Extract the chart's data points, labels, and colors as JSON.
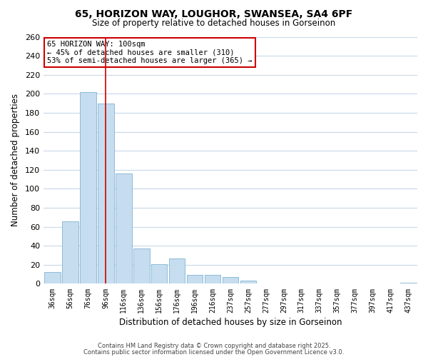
{
  "title": "65, HORIZON WAY, LOUGHOR, SWANSEA, SA4 6PF",
  "subtitle": "Size of property relative to detached houses in Gorseinon",
  "xlabel": "Distribution of detached houses by size in Gorseinon",
  "ylabel": "Number of detached properties",
  "bar_color": "#c6ddef",
  "bar_edge_color": "#7fb3d3",
  "categories": [
    "36sqm",
    "56sqm",
    "76sqm",
    "96sqm",
    "116sqm",
    "136sqm",
    "156sqm",
    "176sqm",
    "196sqm",
    "216sqm",
    "237sqm",
    "257sqm",
    "277sqm",
    "297sqm",
    "317sqm",
    "337sqm",
    "357sqm",
    "377sqm",
    "397sqm",
    "417sqm",
    "437sqm"
  ],
  "values": [
    12,
    66,
    202,
    190,
    116,
    37,
    21,
    27,
    9,
    9,
    7,
    3,
    0,
    0,
    0,
    0,
    0,
    0,
    0,
    0,
    1
  ],
  "ylim": [
    0,
    260
  ],
  "yticks": [
    0,
    20,
    40,
    60,
    80,
    100,
    120,
    140,
    160,
    180,
    200,
    220,
    240,
    260
  ],
  "vline_x_index": 3,
  "vline_color": "#cc0000",
  "annotation_title": "65 HORIZON WAY: 100sqm",
  "annotation_line1": "← 45% of detached houses are smaller (310)",
  "annotation_line2": "53% of semi-detached houses are larger (365) →",
  "annotation_box_color": "#ffffff",
  "annotation_box_edge": "#cc0000",
  "footer1": "Contains HM Land Registry data © Crown copyright and database right 2025.",
  "footer2": "Contains public sector information licensed under the Open Government Licence v3.0.",
  "background_color": "#ffffff",
  "grid_color": "#c8d8e8"
}
